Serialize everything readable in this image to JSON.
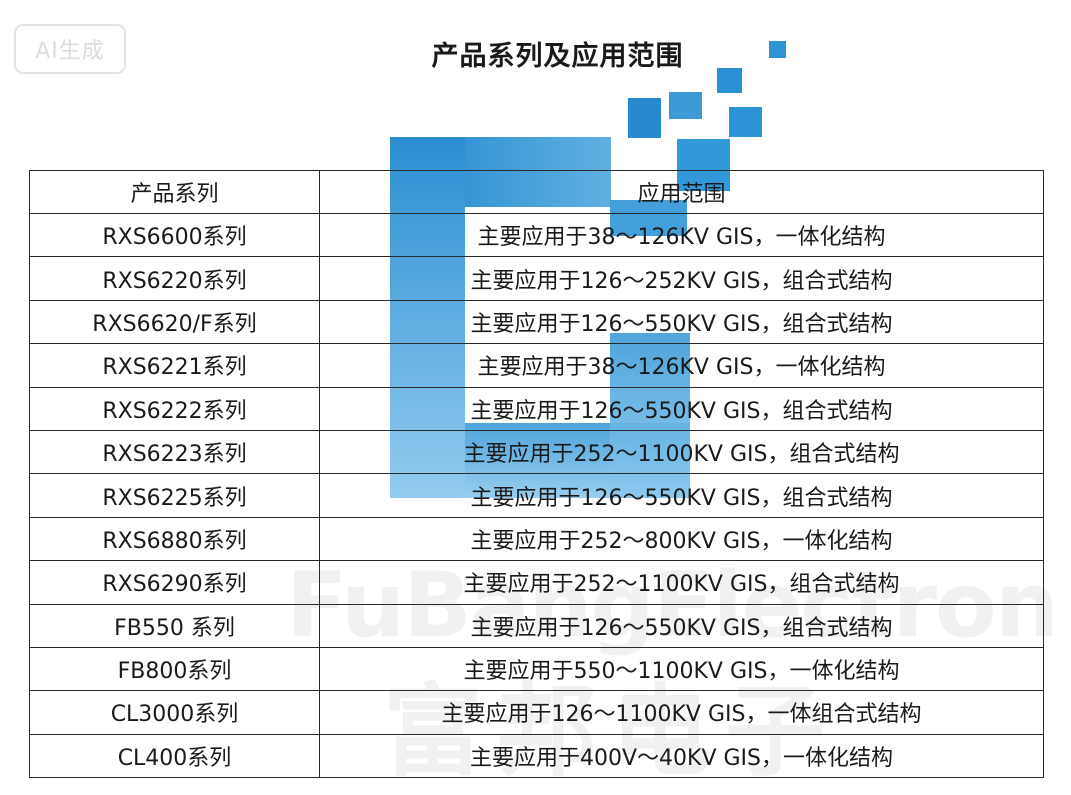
{
  "badge": "AI生成",
  "title": "产品系列及应用范围",
  "table": {
    "headers": [
      "产品系列",
      "应用范围"
    ],
    "rows": [
      [
        "RXS6600系列",
        "主要应用于38～126KV GIS，一体化结构"
      ],
      [
        "RXS6220系列",
        "主要应用于126～252KV GIS，组合式结构"
      ],
      [
        "RXS6620/F系列",
        "主要应用于126～550KV GIS，组合式结构"
      ],
      [
        "RXS6221系列",
        "主要应用于38～126KV GIS，一体化结构"
      ],
      [
        "RXS6222系列",
        "主要应用于126～550KV GIS，组合式结构"
      ],
      [
        "RXS6223系列",
        "主要应用于252～1100KV GIS，组合式结构"
      ],
      [
        "RXS6225系列",
        "主要应用于126～550KV GIS，组合式结构"
      ],
      [
        "RXS6880系列",
        "主要应用于252～800KV GIS，一体化结构"
      ],
      [
        "RXS6290系列",
        "主要应用于252～1100KV GIS，组合式结构"
      ],
      [
        "FB550 系列",
        "主要应用于126～550KV GIS，组合式结构"
      ],
      [
        "FB800系列",
        "主要应用于550～1100KV GIS，一体化结构"
      ],
      [
        "CL3000系列",
        "主要应用于126～1100KV GIS，一体组合式结构"
      ],
      [
        "CL400系列",
        "主要应用于400V～40KV GIS，一体化结构"
      ]
    ]
  },
  "watermark": {
    "en": "FuBangElectron",
    "cn": "富邦电子"
  },
  "colors": {
    "logo_dark": "#1f88d0",
    "logo_light": "#5db2e6"
  }
}
